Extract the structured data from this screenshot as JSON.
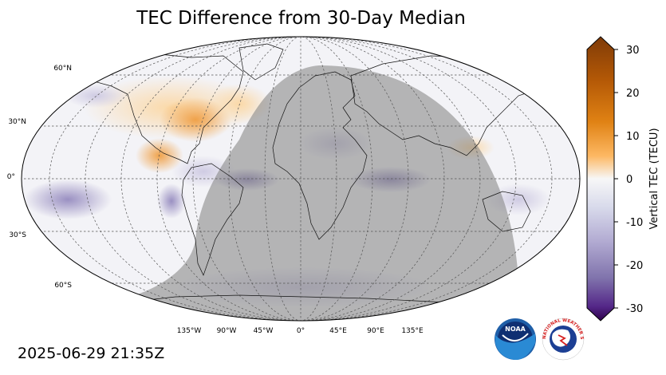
{
  "title": "TEC Difference from 30-Day Median",
  "timestamp": "2025-06-29 21:35Z",
  "map": {
    "lat_labels": [
      "60°N",
      "30°N",
      "0°",
      "30°S",
      "60°S"
    ],
    "lon_labels": [
      "135°W",
      "90°W",
      "45°W",
      "0°",
      "45°E",
      "90°E",
      "135°E"
    ]
  },
  "colorbar": {
    "label": "Vertical TEC (TECU)",
    "ticks": [
      "30",
      "20",
      "10",
      "0",
      "-10",
      "-20",
      "-30"
    ],
    "range": [
      -30,
      30
    ],
    "colors": {
      "max": "#7f3b08",
      "mid": "#f7f7f7",
      "min": "#2d004b",
      "orange": "#e08214",
      "purple": "#8073ac"
    }
  },
  "overlay": {
    "night_shade": "#808080"
  },
  "logos": {
    "noaa": "NOAA",
    "nws": "NATIONAL WEATHER SERVICE"
  }
}
